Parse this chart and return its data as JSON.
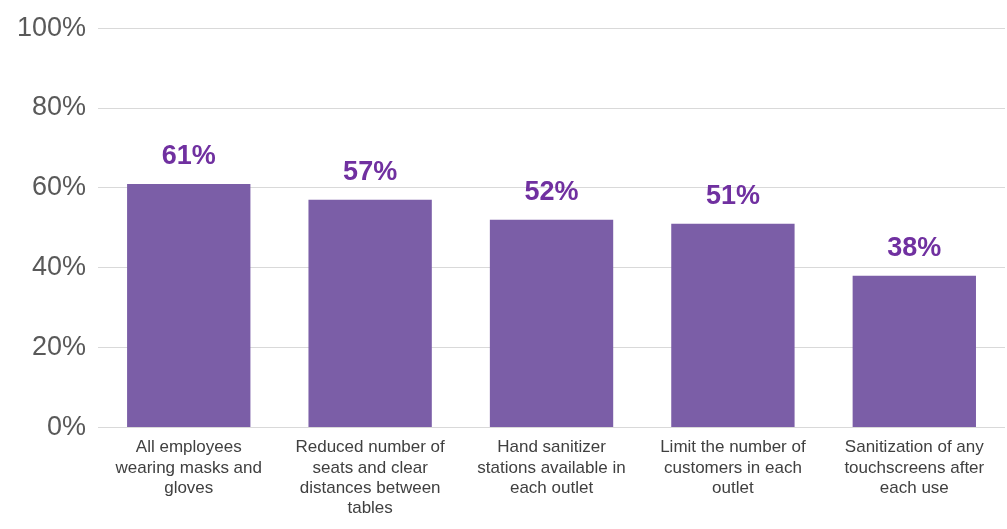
{
  "chart_data": {
    "type": "bar",
    "categories": [
      "All employees wearing masks and gloves",
      "Reduced number of seats and clear distances between tables",
      "Hand sanitizer stations available in each outlet",
      "Limit the number of customers in each outlet",
      "Sanitization of any touchscreens after each use"
    ],
    "values": [
      61,
      57,
      52,
      51,
      38
    ],
    "color": "#7b5ea7",
    "value_labels": [
      "61%",
      "57%",
      "52%",
      "51%",
      "38%"
    ],
    "ylim": [
      0,
      100
    ],
    "yticks": [
      {
        "value": 0,
        "label": "0%"
      },
      {
        "value": 20,
        "label": "20%"
      },
      {
        "value": 40,
        "label": "40%"
      },
      {
        "value": 60,
        "label": "60%"
      },
      {
        "value": 80,
        "label": "80%"
      },
      {
        "value": 100,
        "label": "100%"
      }
    ],
    "grid": "y",
    "legend": false
  }
}
